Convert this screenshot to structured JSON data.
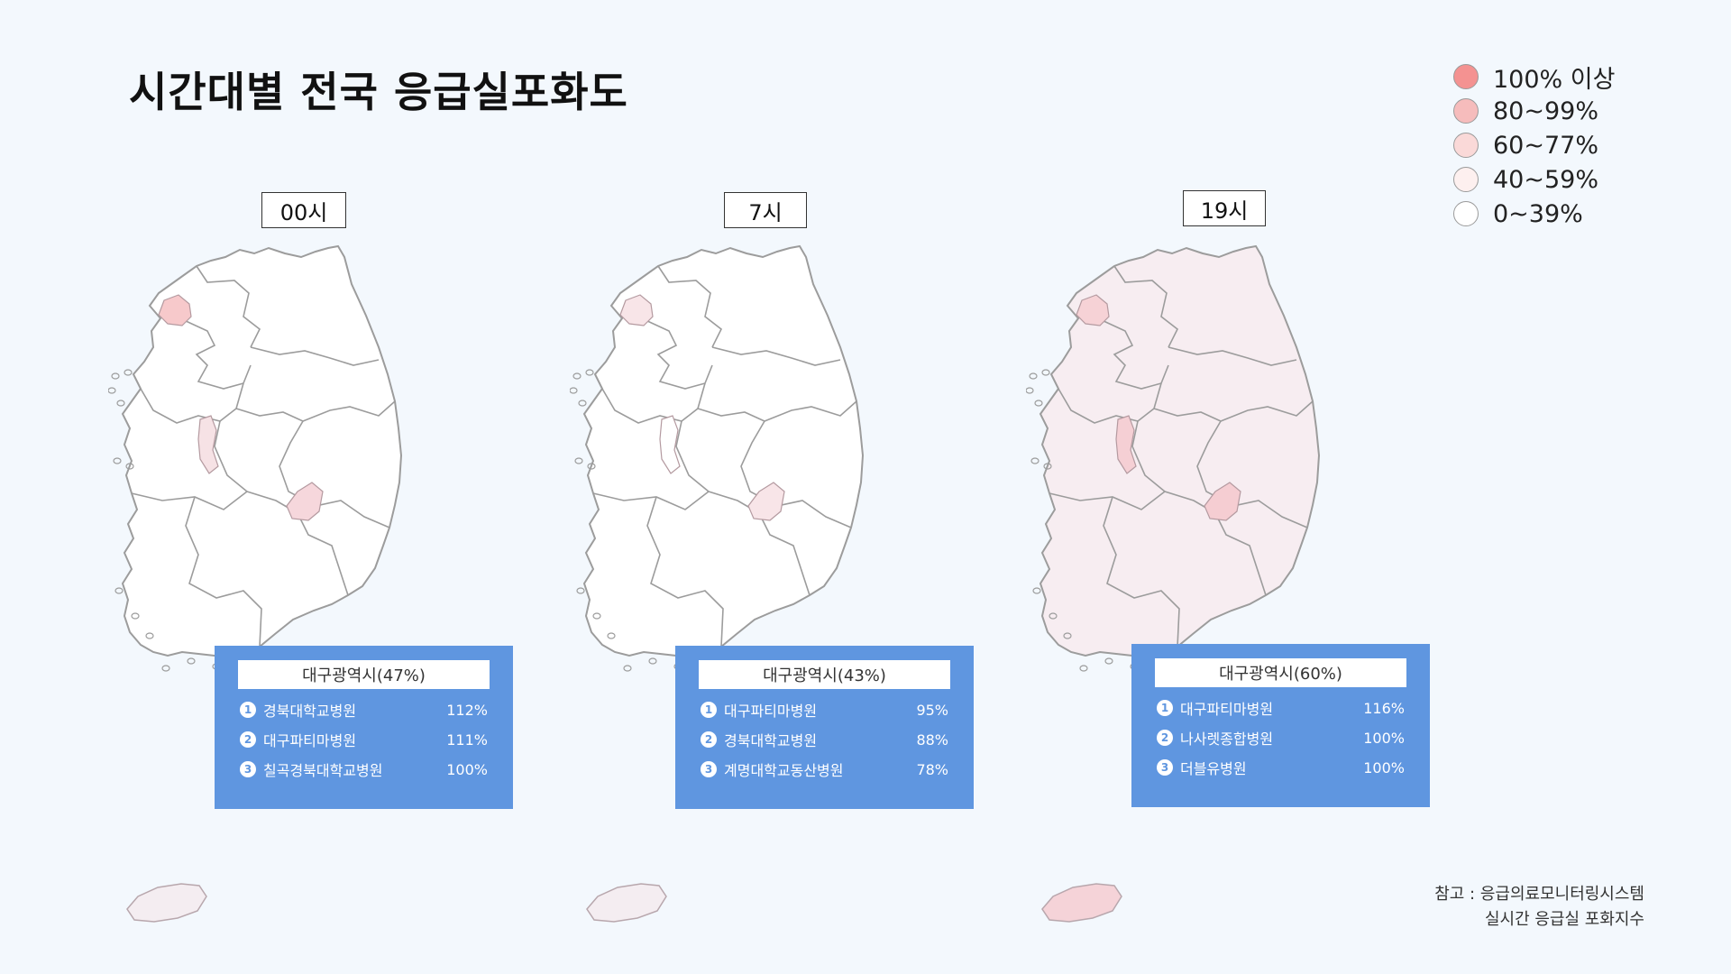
{
  "title": "시간대별 전국 응급실포화도",
  "legend": [
    {
      "label": "100% 이상",
      "color": "#f49291"
    },
    {
      "label": "80~99%",
      "color": "#f6bcbc"
    },
    {
      "label": "60~77%",
      "color": "#fad9d8"
    },
    {
      "label": "40~59%",
      "color": "#fdf0ef"
    },
    {
      "label": "0~39%",
      "color": "#ffffff"
    }
  ],
  "panels": [
    {
      "hour": "00시",
      "colors": {
        "base": "#ffffff",
        "seoul": "#f7c9cb",
        "daejeon": "#f6e2e5",
        "daegu": "#f6d7dc",
        "jeju": "#f4edf1"
      },
      "box_title": "대구광역시(47%)",
      "hospitals": [
        {
          "num": "1",
          "name": "경북대학교병원",
          "pct": "112%"
        },
        {
          "num": "2",
          "name": "대구파티마병원",
          "pct": "111%"
        },
        {
          "num": "3",
          "name": "칠곡경북대학교병원",
          "pct": "100%"
        }
      ]
    },
    {
      "hour": "7시",
      "colors": {
        "base": "#ffffff",
        "seoul": "#f8e5e8",
        "daejeon": "#ffffff",
        "daegu": "#f8e5e8",
        "jeju": "#f4edf1"
      },
      "box_title": "대구광역시(43%)",
      "hospitals": [
        {
          "num": "1",
          "name": "대구파티마병원",
          "pct": "95%"
        },
        {
          "num": "2",
          "name": "경북대학교병원",
          "pct": "88%"
        },
        {
          "num": "3",
          "name": "계명대학교동산병원",
          "pct": "78%"
        }
      ]
    },
    {
      "hour": "19시",
      "colors": {
        "base": "#f7edf1",
        "seoul": "#f6d2d6",
        "daejeon": "#f5cfd4",
        "daegu": "#f5cdd2",
        "jeju": "#f5d3d8"
      },
      "box_title": "대구광역시(60%)",
      "hospitals": [
        {
          "num": "1",
          "name": "대구파티마병원",
          "pct": "116%"
        },
        {
          "num": "2",
          "name": "나사렛종합병원",
          "pct": "100%"
        },
        {
          "num": "3",
          "name": "더블유병원",
          "pct": "100%"
        }
      ]
    }
  ],
  "note": {
    "line1": "참고 : 응급의료모니터링시스템",
    "line2": "실시간 응급실 포화지수"
  }
}
